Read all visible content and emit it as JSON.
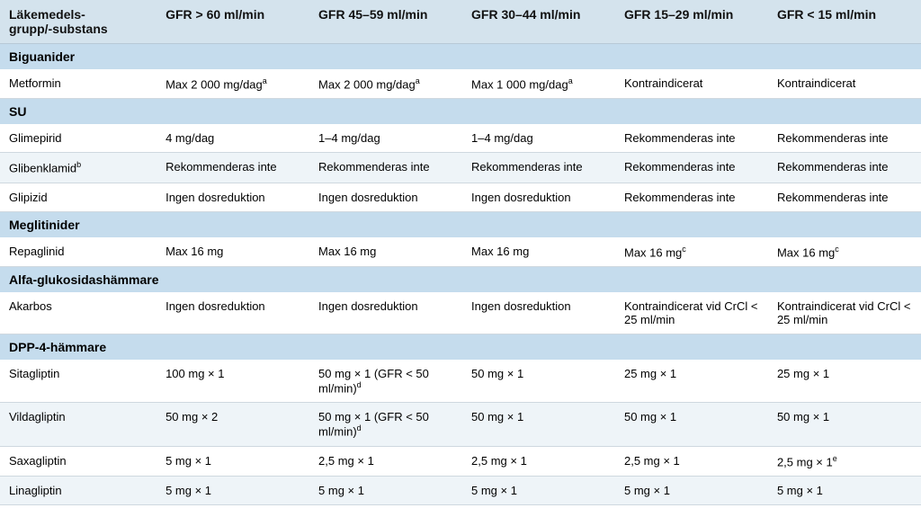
{
  "table": {
    "columns": [
      "Läkemedels-\ngrupp/-substans",
      "GFR > 60 ml/min",
      "GFR 45–59 ml/min",
      "GFR 30–44 ml/min",
      "GFR 15–29 ml/min",
      "GFR < 15 ml/min"
    ],
    "column_widths_pct": [
      17,
      16.6,
      16.6,
      16.6,
      16.6,
      16.6
    ],
    "colors": {
      "header_bg": "#d4e3ed",
      "section_bg": "#c5dced",
      "row_alt_bg": "#eef4f8",
      "row_bg": "#ffffff",
      "border": "#cfd8df",
      "text": "#000000"
    },
    "fonts": {
      "header_size_pt": 14,
      "body_size_pt": 13,
      "family": "Arial"
    },
    "sections": [
      {
        "title": "Biguanider",
        "rows": [
          {
            "alt": false,
            "cells": [
              {
                "text": "Metformin"
              },
              {
                "text": "Max 2 000 mg/dag",
                "sup": "a"
              },
              {
                "text": "Max 2 000 mg/dag",
                "sup": "a"
              },
              {
                "text": "Max 1 000 mg/dag",
                "sup": "a"
              },
              {
                "text": "Kontraindicerat"
              },
              {
                "text": "Kontraindicerat"
              }
            ]
          }
        ]
      },
      {
        "title": "SU",
        "rows": [
          {
            "alt": false,
            "cells": [
              {
                "text": "Glimepirid"
              },
              {
                "text": "4 mg/dag"
              },
              {
                "text": "1–4 mg/dag"
              },
              {
                "text": "1–4 mg/dag"
              },
              {
                "text": "Rekommenderas inte"
              },
              {
                "text": "Rekommenderas inte"
              }
            ]
          },
          {
            "alt": true,
            "cells": [
              {
                "text": "Glibenklamid",
                "sup": "b"
              },
              {
                "text": "Rekommenderas inte"
              },
              {
                "text": "Rekommenderas inte"
              },
              {
                "text": "Rekommenderas inte"
              },
              {
                "text": "Rekommenderas inte"
              },
              {
                "text": "Rekommenderas inte"
              }
            ]
          },
          {
            "alt": false,
            "cells": [
              {
                "text": "Glipizid"
              },
              {
                "text": "Ingen dosreduktion"
              },
              {
                "text": "Ingen dosreduktion"
              },
              {
                "text": "Ingen dosreduktion"
              },
              {
                "text": "Rekommenderas inte"
              },
              {
                "text": "Rekommenderas inte"
              }
            ]
          }
        ]
      },
      {
        "title": "Meglitinider",
        "rows": [
          {
            "alt": false,
            "cells": [
              {
                "text": "Repaglinid"
              },
              {
                "text": "Max 16 mg"
              },
              {
                "text": "Max 16 mg"
              },
              {
                "text": "Max 16 mg"
              },
              {
                "text": "Max 16 mg",
                "sup": "c"
              },
              {
                "text": "Max 16 mg",
                "sup": "c"
              }
            ]
          }
        ]
      },
      {
        "title": "Alfa-glukosidashämmare",
        "rows": [
          {
            "alt": false,
            "cells": [
              {
                "text": "Akarbos"
              },
              {
                "text": "Ingen dosreduktion"
              },
              {
                "text": "Ingen dosreduktion"
              },
              {
                "text": "Ingen dosreduktion"
              },
              {
                "text": "Kontraindicerat vid CrCl < 25 ml/min"
              },
              {
                "text": "Kontraindicerat vid CrCl < 25 ml/min"
              }
            ]
          }
        ]
      },
      {
        "title": "DPP-4-hämmare",
        "rows": [
          {
            "alt": false,
            "cells": [
              {
                "text": "Sitagliptin"
              },
              {
                "text": "100 mg × 1"
              },
              {
                "text": "50 mg × 1 (GFR < 50 ml/min)",
                "sup": "d"
              },
              {
                "text": "50 mg × 1"
              },
              {
                "text": "25 mg × 1"
              },
              {
                "text": "25 mg × 1"
              }
            ]
          },
          {
            "alt": true,
            "cells": [
              {
                "text": "Vildagliptin"
              },
              {
                "text": "50 mg × 2"
              },
              {
                "text": "50 mg × 1 (GFR < 50 ml/min)",
                "sup": "d"
              },
              {
                "text": "50 mg × 1"
              },
              {
                "text": "50 mg × 1"
              },
              {
                "text": "50 mg × 1"
              }
            ]
          },
          {
            "alt": false,
            "cells": [
              {
                "text": "Saxagliptin"
              },
              {
                "text": "5 mg × 1"
              },
              {
                "text": "2,5 mg × 1"
              },
              {
                "text": "2,5 mg × 1"
              },
              {
                "text": "2,5 mg × 1"
              },
              {
                "text": "2,5 mg × 1",
                "sup": "e"
              }
            ]
          },
          {
            "alt": true,
            "cells": [
              {
                "text": "Linagliptin"
              },
              {
                "text": "5 mg × 1"
              },
              {
                "text": "5 mg × 1"
              },
              {
                "text": "5 mg × 1"
              },
              {
                "text": "5 mg × 1"
              },
              {
                "text": "5 mg × 1"
              }
            ]
          }
        ]
      }
    ]
  }
}
